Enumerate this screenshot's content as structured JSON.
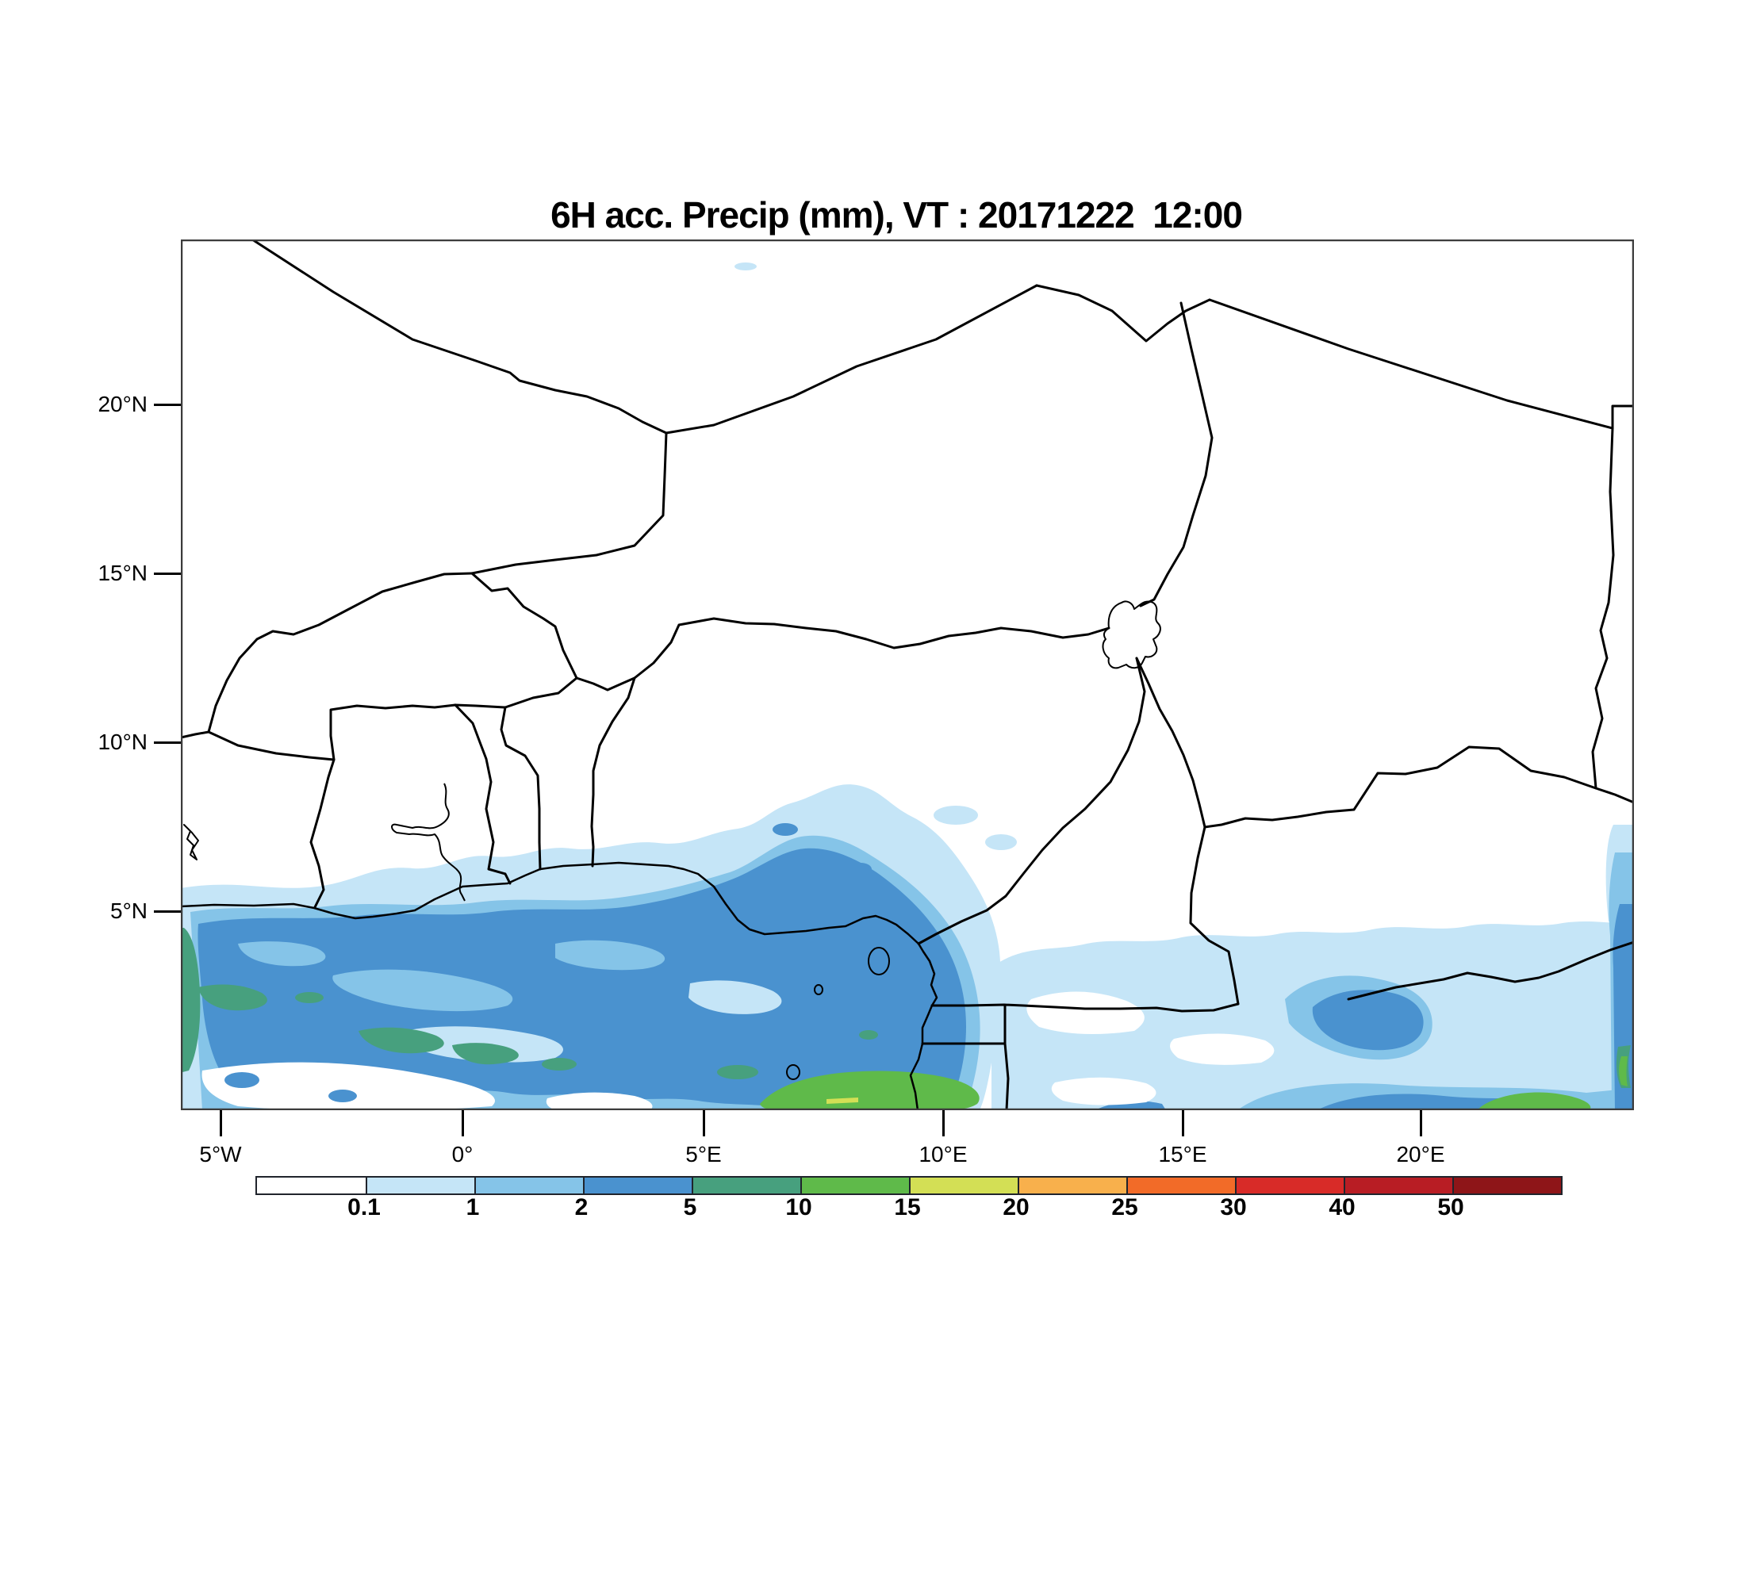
{
  "chart": {
    "title": "6H acc. Precip (mm), VT : 20171222  12:00"
  },
  "map": {
    "lat_ticks": [
      "20°N",
      "15°N",
      "10°N",
      "5°N"
    ],
    "lon_ticks": [
      "5°W",
      "0°",
      "5°E",
      "10°E",
      "15°E",
      "20°E"
    ]
  },
  "colorbar": {
    "units": "mm",
    "labels": [
      "0.1",
      "1",
      "2",
      "5",
      "10",
      "15",
      "20",
      "25",
      "30",
      "40",
      "50"
    ],
    "colors": [
      "#FFFFFF",
      "#C5E5F7",
      "#85C4E8",
      "#4A92CF",
      "#47A07E",
      "#5FBA4A",
      "#D3DF55",
      "#F8B04C",
      "#F26B28",
      "#D82B28",
      "#B81D24",
      "#8E1518"
    ]
  },
  "chart_data": {
    "type": "heatmap",
    "subtype": "filled-contour precipitation map",
    "title": "6H acc. Precip (mm), VT : 20171222  12:00",
    "variable": "6-hour accumulated precipitation",
    "units": "mm",
    "valid_time": "2017-12-22 12:00",
    "accumulation_hours": 6,
    "lon_range_deg": [
      -5.9,
      24.5
    ],
    "lat_range_deg": [
      -0.9,
      24.9
    ],
    "xlabel_ticks": [
      "5°W",
      "0°",
      "5°E",
      "10°E",
      "15°E",
      "20°E"
    ],
    "ylabel_ticks": [
      "5°N",
      "10°N",
      "15°N",
      "20°N"
    ],
    "grid": false,
    "legend_position": "bottom horizontal colorbar",
    "contour_levels_mm": [
      0.1,
      1,
      2,
      5,
      10,
      15,
      20,
      25,
      30,
      40,
      50
    ],
    "palette": [
      "#FFFFFF",
      "#C5E5F7",
      "#85C4E8",
      "#4A92CF",
      "#47A07E",
      "#5FBA4A",
      "#D3DF55",
      "#F8B04C",
      "#F26B28",
      "#D82B28",
      "#B81D24",
      "#8E1518"
    ],
    "basemap": "country borders of West/Central Africa (Gulf of Guinea, Niger, Nigeria, Chad, Cameroon), Lake Chad, Lake Volta, Bioko and Sao Tome islands",
    "precip_regions": [
      {
        "area": "Gulf of Guinea off Ivory Coast/Ghana/Togo/Benin (6W-5E, 0-5.5N)",
        "value_mm": "2-5 widespread with embedded 5-10 streaks and 1-2 / 0.1-1 lenses"
      },
      {
        "area": "Bight of Benin / SW Nigeria (3-8E, 3-7.5N)",
        "value_mm": "0.1-2 with 2-5 cores"
      },
      {
        "area": "Cameroon coastal waters near equator (6.5-10E, 0-1N)",
        "value_mm": "10-15 band, local 15-20"
      },
      {
        "area": "Southern CAR / Congo basin (11-24E, 0-4N)",
        "value_mm": "0.1-1 broad, patches 1-5"
      },
      {
        "area": "Eastern edge stripe (~24E, 0-4.5N)",
        "value_mm": "2-5 with 5-10 slivers"
      },
      {
        "area": "South-eastern bottom band (16-24E, near 1S)",
        "value_mm": "2-5 with 10-15 blob"
      },
      {
        "area": "Isolated speck (~6E, 24N)",
        "value_mm": "0.1-1"
      }
    ]
  }
}
